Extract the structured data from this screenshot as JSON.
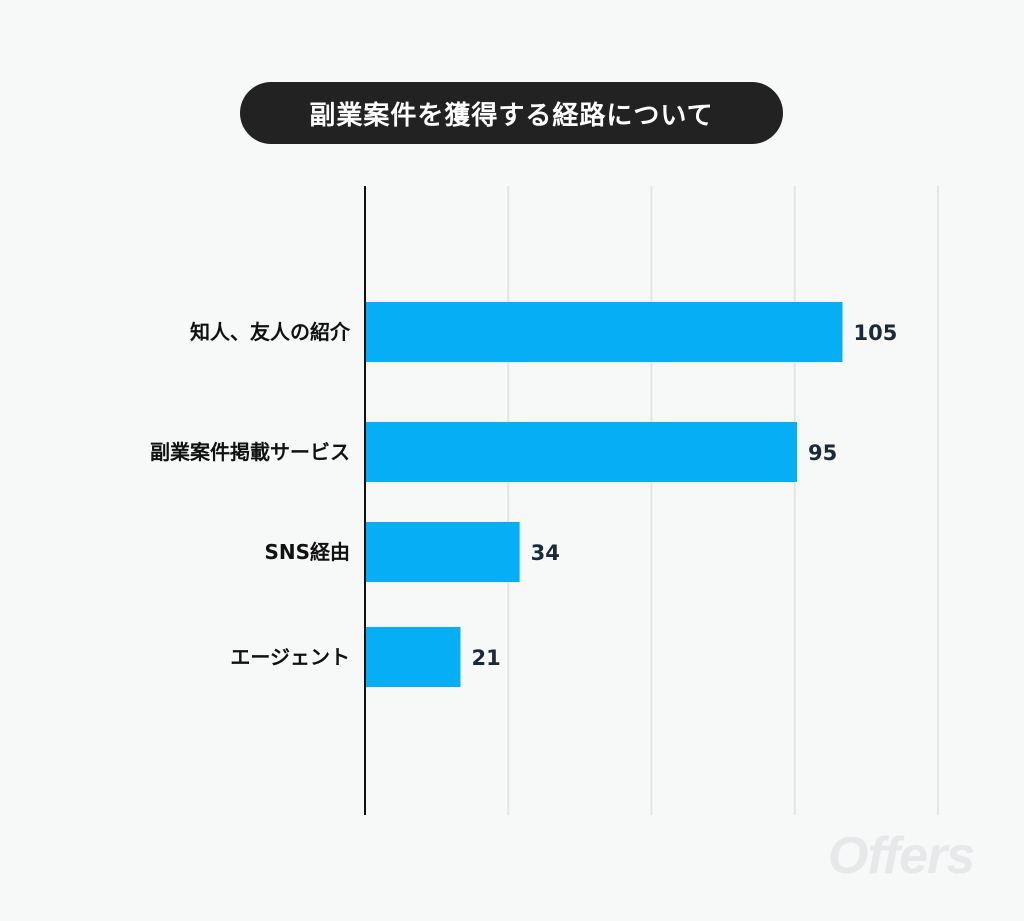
{
  "title": "副業案件を獲得する経路について",
  "watermark": "Offers",
  "colors": {
    "bar": "#05aef5",
    "axis": "#111111",
    "grid": "#e3e5e6"
  },
  "chart_data": {
    "type": "bar",
    "orientation": "horizontal",
    "title": "副業案件を獲得する経路について",
    "categories": [
      "知人、友人の紹介",
      "副業案件掲載サービス",
      "SNS経由",
      "エージェント"
    ],
    "values": [
      105,
      95,
      34,
      21
    ],
    "xlim": [
      0,
      126
    ],
    "grid": true,
    "legend": "none"
  }
}
